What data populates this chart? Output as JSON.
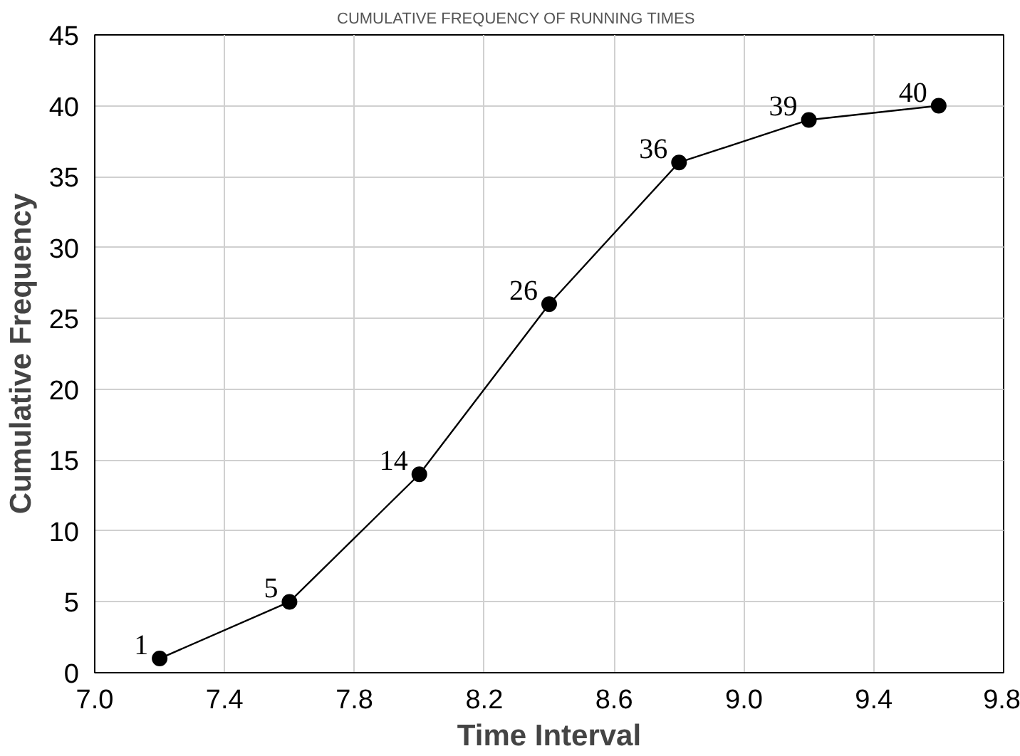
{
  "chart_data": {
    "type": "line",
    "title": "CUMULATIVE FREQUENCY OF RUNNING TIMES",
    "xlabel": "Time Interval",
    "ylabel": "Cumulative Frequency",
    "x": [
      7.2,
      7.6,
      8.0,
      8.4,
      8.8,
      9.2,
      9.6
    ],
    "series": [
      {
        "color": "#000000",
        "values": [
          1,
          5,
          14,
          26,
          36,
          39,
          40
        ]
      }
    ],
    "xlim": [
      7.0,
      9.8
    ],
    "xticks": [
      {
        "value": 7.0,
        "label": "7.0"
      },
      7.4,
      7.8,
      8.2,
      8.6,
      {
        "value": 9.0,
        "label": "9.0"
      },
      9.4,
      9.8
    ],
    "ylim": [
      0,
      45
    ],
    "yticks": [
      0,
      5,
      10,
      15,
      20,
      25,
      30,
      35,
      40,
      45
    ],
    "grid": true,
    "marker": "circle",
    "line_style": "solid",
    "data_labels": true
  }
}
